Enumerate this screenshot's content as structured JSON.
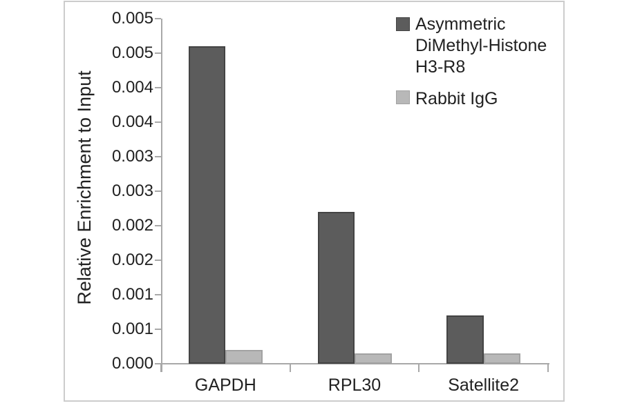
{
  "chart_data": {
    "type": "bar",
    "title": "",
    "xlabel": "",
    "ylabel": "Relative Enrichment to Input",
    "categories": [
      "GAPDH",
      "RPL30",
      "Satellite2"
    ],
    "series": [
      {
        "key": "h3r8",
        "name": "Asymmetric DiMethyl-Histone H3-R8",
        "color": "#5c5c5c",
        "border_color": "#434343",
        "values": [
          0.0046,
          0.0022,
          0.0007
        ]
      },
      {
        "key": "igg",
        "name": "Rabbit IgG",
        "color": "#b8b8b8",
        "border_color": "#a2a2a2",
        "values": [
          0.0002,
          0.00015,
          0.00015
        ]
      }
    ],
    "ylim": [
      0,
      0.005
    ],
    "ytick_step": 0.0005,
    "ytick_labels_top_to_bottom": [
      "0.005",
      "0.005",
      "0.004",
      "0.004",
      "0.003",
      "0.003",
      "0.002",
      "0.002",
      "0.001",
      "0.001",
      "0.000"
    ],
    "grid": false,
    "legend_position": "top-right",
    "legend": [
      {
        "label_lines": [
          "Asymmetric",
          "DiMethyl-Histone",
          "H3-R8"
        ]
      },
      {
        "label_lines": [
          "Rabbit IgG"
        ]
      }
    ]
  },
  "style": {
    "axis_color": "#a8a8a8",
    "text_color": "#212121",
    "frame_border_color": "#cccccc",
    "background": "#ffffff"
  }
}
